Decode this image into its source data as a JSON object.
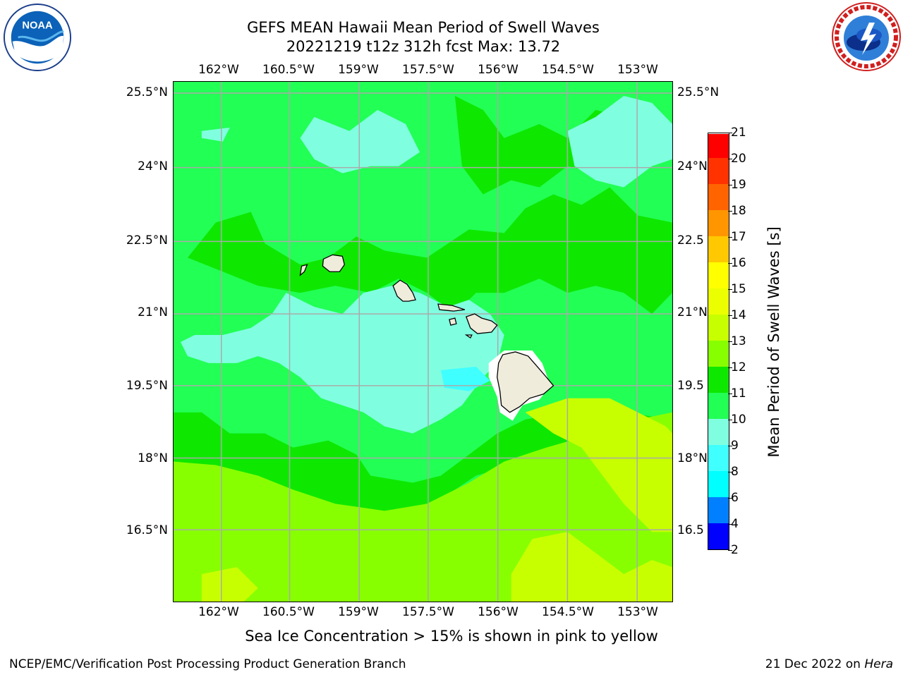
{
  "title": {
    "line1": "GEFS MEAN Hawaii Mean Period of Swell Waves",
    "line2": "20221219 t12z 312h fcst   Max: 13.72"
  },
  "logos": {
    "noaa": {
      "icon": "noaa-logo",
      "text": "NOAA",
      "ring_text": "NATIONAL OCEANIC AND ATMOSPHERIC ADMINISTRATION · U.S. DEPARTMENT OF COMMERCE"
    },
    "nws": {
      "icon": "nws-logo",
      "ring_text": "NATIONAL WEATHER SERVICE"
    }
  },
  "map": {
    "lon_labels": [
      "162°W",
      "160.5°W",
      "159°W",
      "157.5°W",
      "156°W",
      "154.5°W",
      "153°W"
    ],
    "lat_labels": [
      "25.5°N",
      "24°N",
      "22.5°N",
      "21°N",
      "19.5°N",
      "18°N",
      "16.5°N"
    ],
    "lat_labels_right": [
      "25.5°N",
      "24°N",
      "22.5",
      "21°N",
      "19.5",
      "18°N",
      "16.5"
    ],
    "field_colors": {
      "9-10": "#80ffe0",
      "10-11": "#22ff55",
      "11-12": "#0ee800",
      "12-13": "#88ff00",
      "13-14": "#c8ff00",
      "land": "#efecdc"
    }
  },
  "colorbar": {
    "label": "Mean Period of Swell Waves [s]",
    "ticks": [
      "2",
      "4",
      "6",
      "8",
      "9",
      "10",
      "11",
      "12",
      "13",
      "14",
      "15",
      "16",
      "17",
      "18",
      "19",
      "20",
      "21"
    ],
    "colors": [
      "#0000ff",
      "#0080ff",
      "#00ffff",
      "#40ffff",
      "#80ffe0",
      "#22ff55",
      "#0ee800",
      "#88ff00",
      "#c8ff00",
      "#ecff00",
      "#ffff00",
      "#ffc800",
      "#ff9600",
      "#ff6400",
      "#ff3200",
      "#ff0000"
    ]
  },
  "note": "Sea Ice Concentration > 15% is shown in pink to yellow",
  "footer": {
    "left": "NCEP/EMC/Verification Post Processing Product Generation Branch",
    "right_date": "21 Dec 2022 on ",
    "right_host": "Hera"
  }
}
